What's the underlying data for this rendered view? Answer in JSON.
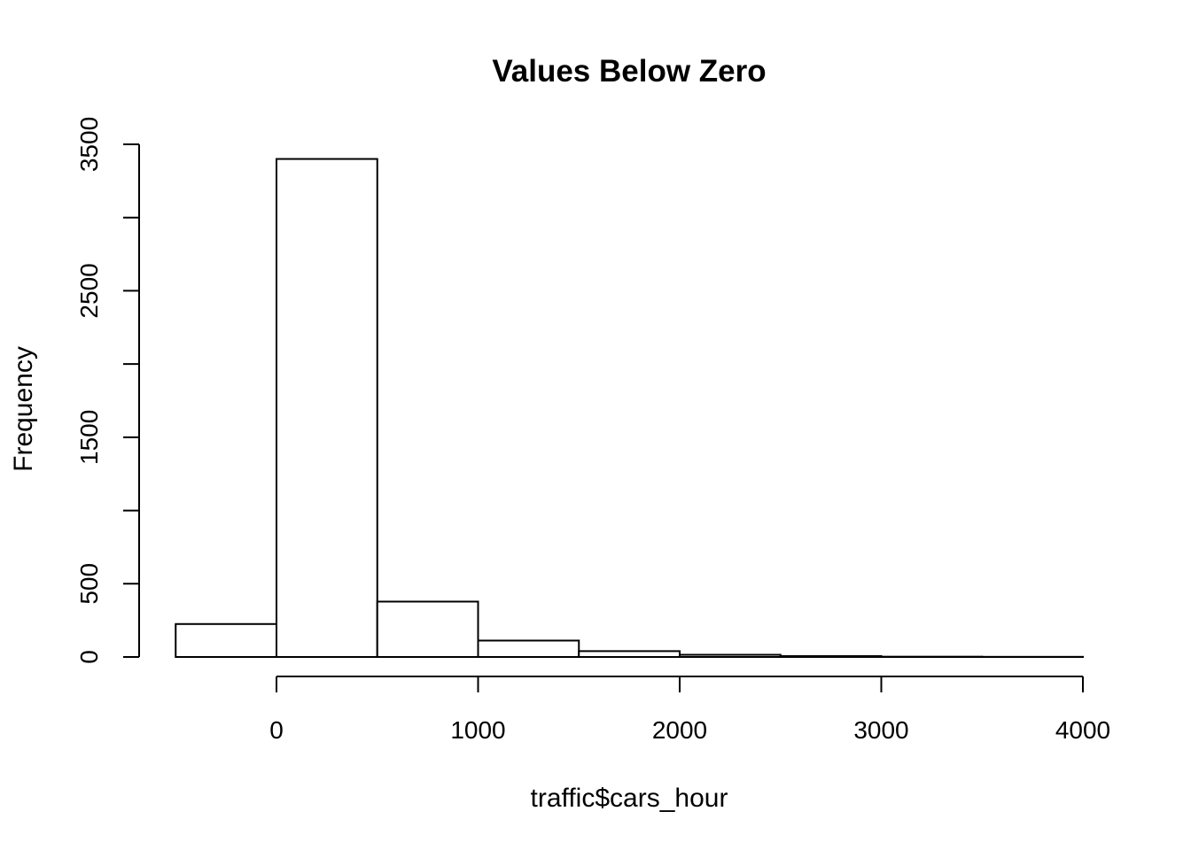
{
  "chart_data": {
    "type": "bar",
    "title": "Values Below Zero",
    "xlabel": "traffic$cars_hour",
    "ylabel": "Frequency",
    "bins": [
      {
        "start": -500,
        "end": 0,
        "count": 225
      },
      {
        "start": 0,
        "end": 500,
        "count": 3400
      },
      {
        "start": 500,
        "end": 1000,
        "count": 378
      },
      {
        "start": 1000,
        "end": 1500,
        "count": 112
      },
      {
        "start": 1500,
        "end": 2000,
        "count": 40
      },
      {
        "start": 2000,
        "end": 2500,
        "count": 15
      },
      {
        "start": 2500,
        "end": 3000,
        "count": 6
      },
      {
        "start": 3000,
        "end": 3500,
        "count": 2
      },
      {
        "start": 3500,
        "end": 4000,
        "count": 1
      }
    ],
    "x_axis": {
      "ticks": [
        0,
        1000,
        2000,
        3000,
        4000
      ],
      "range": [
        -500,
        4000
      ]
    },
    "y_axis": {
      "ticks": [
        0,
        500,
        1000,
        1500,
        2000,
        2500,
        3000,
        3500
      ],
      "labeled_ticks": [
        "0",
        "500",
        "1500",
        "2500",
        "3500"
      ],
      "range": [
        0,
        3500
      ]
    },
    "grid": false,
    "legend": "none"
  }
}
